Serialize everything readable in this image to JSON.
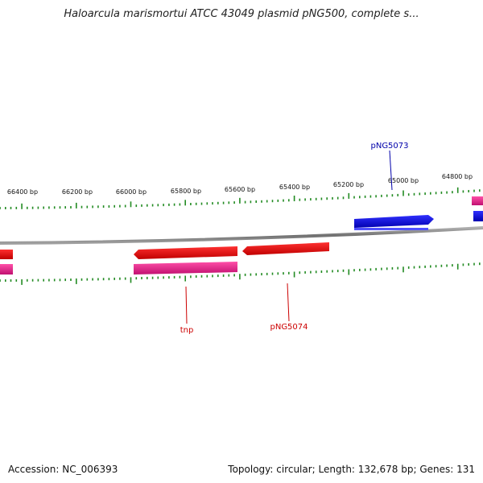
{
  "title": "Haloarcula marismortui ATCC 43049 plasmid pNG500, complete s...",
  "footer": {
    "accession": "Accession: NC_006393",
    "summary": "Topology: circular; Length: 132,678 bp; Genes: 131"
  },
  "scale_labels": [
    "66400 bp",
    "66200 bp",
    "66000 bp",
    "65800 bp",
    "65600 bp",
    "65400 bp",
    "65200 bp",
    "65000 bp",
    "64800 bp"
  ],
  "gene_labels": {
    "pNG5073": "pNG5073",
    "tnp": "tnp",
    "pNG5074": "pNG5074"
  },
  "colors": {
    "forward_gene": "#0000dd",
    "reverse_gene": "#ee0000",
    "reverse_cds": "#e0207f",
    "ticks": "#228b22",
    "backbone": "#808080",
    "label_blue": "#0000aa",
    "label_red": "#cc0000"
  }
}
